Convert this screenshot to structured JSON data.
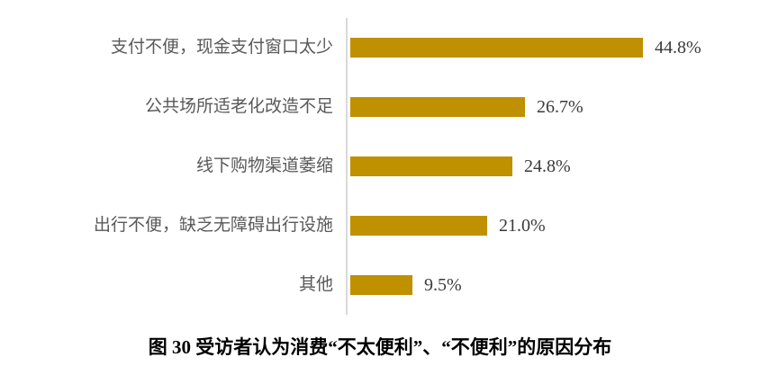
{
  "chart_data": {
    "type": "bar",
    "orientation": "horizontal",
    "title": "图 30 受访者认为消费“不太便利”、“不便利”的原因分布",
    "categories": [
      "支付不便，现金支付窗口太少",
      "公共场所适老化改造不足",
      "线下购物渠道萎缩",
      "出行不便，缺乏无障碍出行设施",
      "其他"
    ],
    "values": [
      44.8,
      26.7,
      24.8,
      21.0,
      9.5
    ],
    "value_labels": [
      "44.8%",
      "26.7%",
      "24.8%",
      "21.0%",
      "9.5%"
    ],
    "xlabel": "",
    "ylabel": "",
    "xlim": [
      0,
      50
    ],
    "grid": false,
    "legend": "none",
    "bar_color": "#BF9000",
    "axis_line_color": "#D9D9D9"
  }
}
